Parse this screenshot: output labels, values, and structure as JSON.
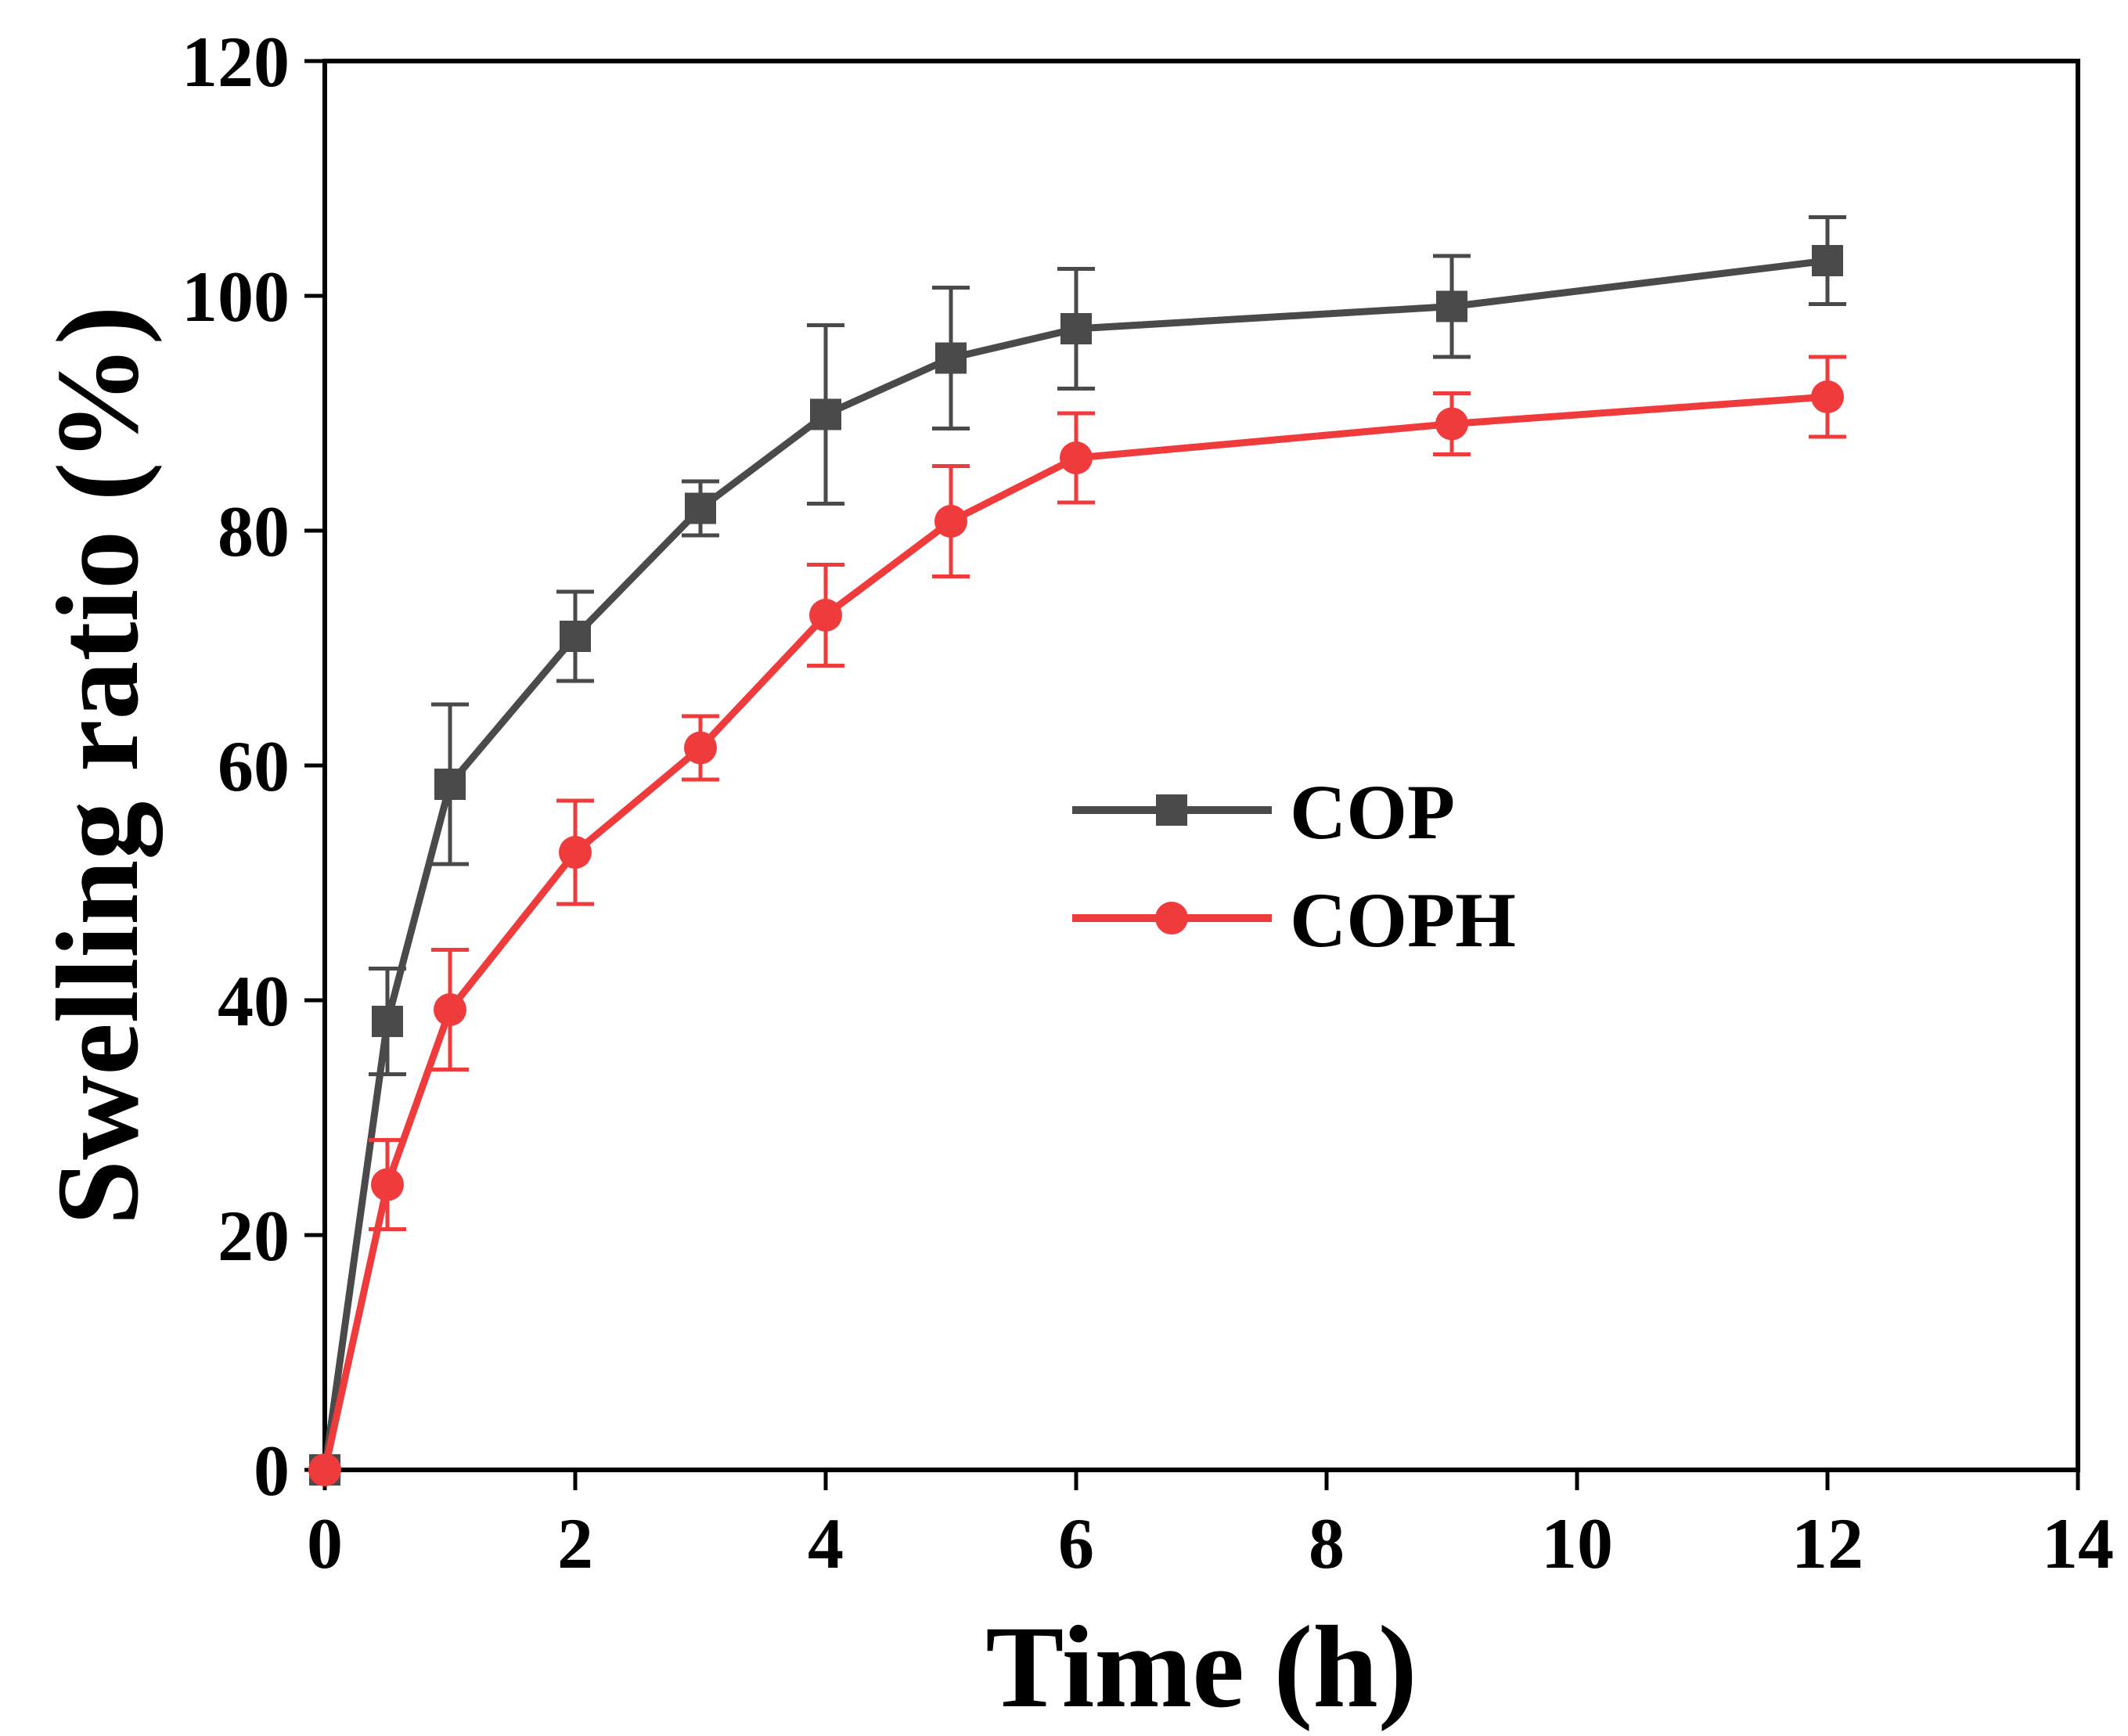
{
  "chart_data": {
    "type": "line",
    "title": "",
    "xlabel": "Time (h)",
    "ylabel": "Swelling ratio (%)",
    "xlim": [
      0,
      14
    ],
    "ylim": [
      0,
      120
    ],
    "xticks": [
      0,
      2,
      4,
      6,
      8,
      10,
      12,
      14
    ],
    "yticks": [
      0,
      20,
      40,
      60,
      80,
      100,
      120
    ],
    "xtick_labels": [
      "0",
      "2",
      "4",
      "6",
      "8",
      "10",
      "12",
      "14"
    ],
    "ytick_labels": [
      "0",
      "20",
      "40",
      "60",
      "80",
      "100",
      "120"
    ],
    "grid": false,
    "legend_position": "center-right",
    "series": [
      {
        "name": "COP",
        "color": "#4a4a4a",
        "marker": "square",
        "x": [
          0,
          0.5,
          1,
          2,
          3,
          4,
          5,
          6,
          9,
          12
        ],
        "y": [
          0,
          38.2,
          58.4,
          71.0,
          81.9,
          89.9,
          94.7,
          97.2,
          99.1,
          103.0
        ],
        "error": [
          0,
          4.5,
          6.8,
          3.8,
          2.3,
          7.6,
          6.0,
          5.1,
          4.3,
          3.7
        ]
      },
      {
        "name": "COPH",
        "color": "#ef3b3b",
        "marker": "circle",
        "x": [
          0,
          0.5,
          1,
          2,
          3,
          4,
          5,
          6,
          9,
          12
        ],
        "y": [
          0,
          24.3,
          39.2,
          52.6,
          61.5,
          72.8,
          80.8,
          86.2,
          89.1,
          91.4
        ],
        "error": [
          0,
          3.8,
          5.1,
          4.4,
          2.7,
          4.3,
          4.7,
          3.8,
          2.6,
          3.4
        ]
      }
    ]
  }
}
